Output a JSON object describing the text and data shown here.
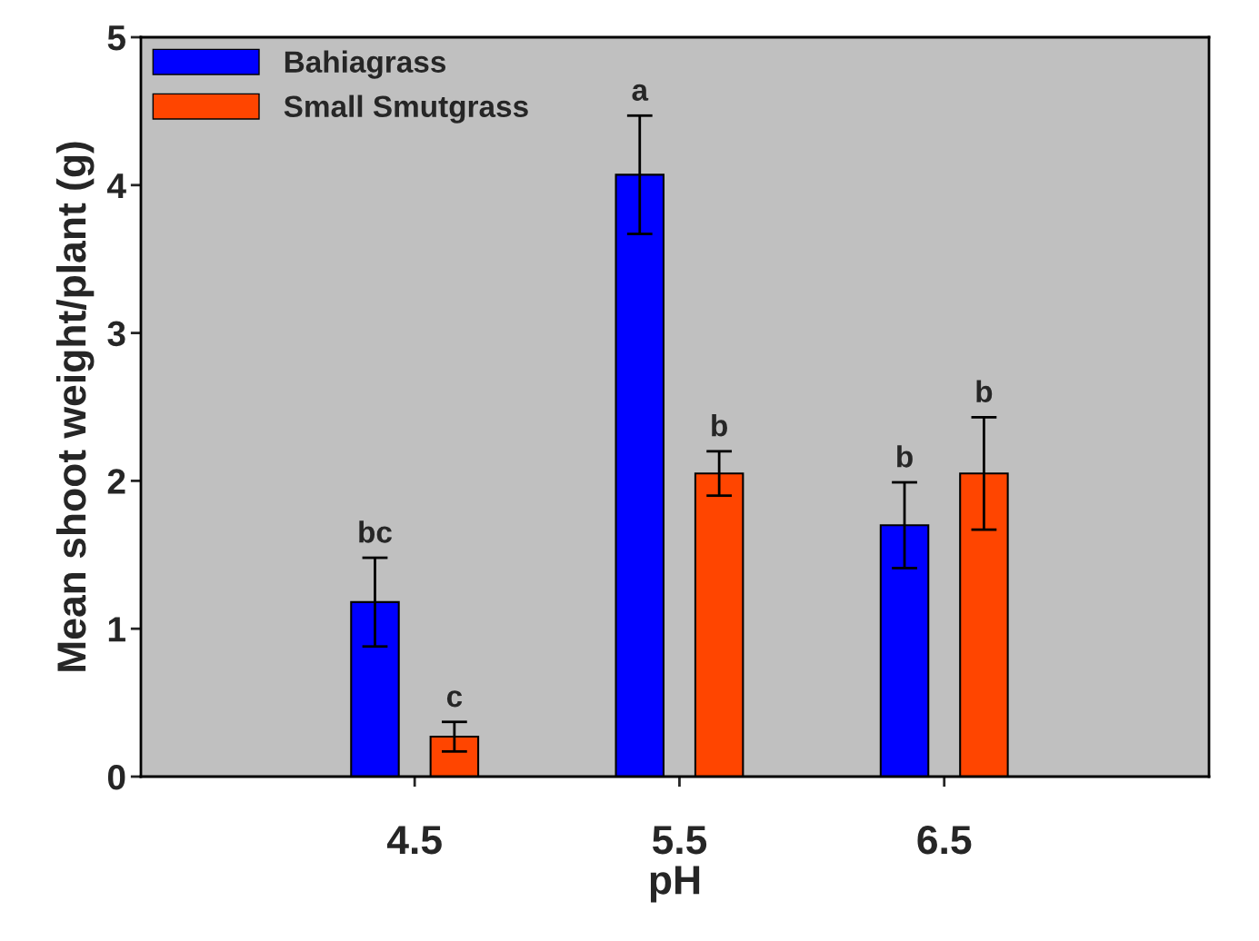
{
  "chart_data": {
    "type": "bar",
    "xlabel": "pH",
    "ylabel": "Mean shoot weight/plant (g)",
    "categories": [
      "4.5",
      "5.5",
      "6.5"
    ],
    "series": [
      {
        "name": "Bahiagrass",
        "color": "#0000ff",
        "values": [
          1.18,
          4.07,
          1.7
        ],
        "errors": [
          0.3,
          0.4,
          0.29
        ]
      },
      {
        "name": "Small Smutgrass",
        "color": "#ff4500",
        "values": [
          0.27,
          2.05,
          2.05
        ],
        "errors": [
          0.1,
          0.15,
          0.38
        ]
      }
    ],
    "annotations": [
      "bc",
      "a",
      "b",
      "c",
      "b",
      "b"
    ],
    "ylim": [
      0,
      5
    ],
    "yticks": [
      0,
      1,
      2,
      3,
      4,
      5
    ],
    "grid": false,
    "legend": "top left"
  }
}
